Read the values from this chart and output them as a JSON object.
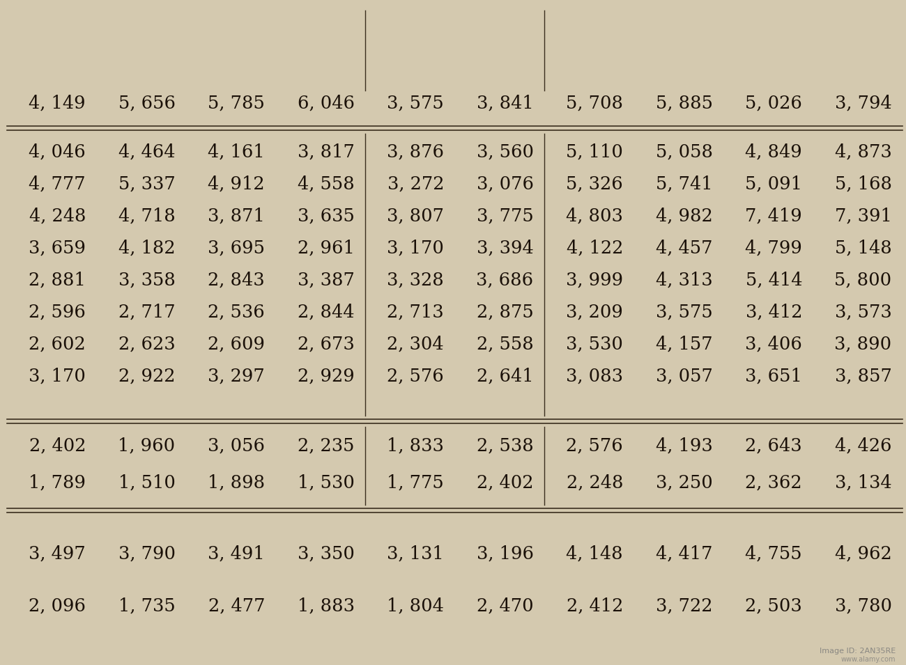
{
  "background_color": "#d4c9af",
  "text_color": "#1a1008",
  "font_size": 18.5,
  "row0": [
    "4, 149",
    "5, 656",
    "5, 785",
    "6, 046",
    "3, 575",
    "3, 841",
    "5, 708",
    "5, 885",
    "5, 026",
    "3, 794"
  ],
  "section1": [
    [
      "4, 046",
      "4, 464",
      "4, 161",
      "3, 817",
      "3, 876",
      "3, 560",
      "5, 110",
      "5, 058",
      "4, 849",
      "4, 873"
    ],
    [
      "4, 777",
      "5, 337",
      "4, 912",
      "4, 558",
      "3, 272",
      "3, 076",
      "5, 326",
      "5, 741",
      "5, 091",
      "5, 168"
    ],
    [
      "4, 248",
      "4, 718",
      "3, 871",
      "3, 635",
      "3, 807",
      "3, 775",
      "4, 803",
      "4, 982",
      "7, 419",
      "7, 391"
    ],
    [
      "3, 659",
      "4, 182",
      "3, 695",
      "2, 961",
      "3, 170",
      "3, 394",
      "4, 122",
      "4, 457",
      "4, 799",
      "5, 148"
    ],
    [
      "2, 881",
      "3, 358",
      "2, 843",
      "3, 387",
      "3, 328",
      "3, 686",
      "3, 999",
      "4, 313",
      "5, 414",
      "5, 800"
    ],
    [
      "2, 596",
      "2, 717",
      "2, 536",
      "2, 844",
      "2, 713",
      "2, 875",
      "3, 209",
      "3, 575",
      "3, 412",
      "3, 573"
    ],
    [
      "2, 602",
      "2, 623",
      "2, 609",
      "2, 673",
      "2, 304",
      "2, 558",
      "3, 530",
      "4, 157",
      "3, 406",
      "3, 890"
    ],
    [
      "3, 170",
      "2, 922",
      "3, 297",
      "2, 929",
      "2, 576",
      "2, 641",
      "3, 083",
      "3, 057",
      "3, 651",
      "3, 857"
    ]
  ],
  "section2": [
    [
      "2, 402",
      "1, 960",
      "3, 056",
      "2, 235",
      "1, 833",
      "2, 538",
      "2, 576",
      "4, 193",
      "2, 643",
      "4, 426"
    ],
    [
      "1, 789",
      "1, 510",
      "1, 898",
      "1, 530",
      "1, 775",
      "2, 402",
      "2, 248",
      "3, 250",
      "2, 362",
      "3, 134"
    ]
  ],
  "section3": [
    "3, 497",
    "3, 790",
    "3, 491",
    "3, 350",
    "3, 131",
    "3, 196",
    "4, 148",
    "4, 417",
    "4, 755",
    "4, 962"
  ],
  "section4": [
    "2, 096",
    "1, 735",
    "2, 477",
    "1, 883",
    "1, 804",
    "2, 470",
    "2, 412",
    "3, 722",
    "2, 503",
    "3, 780"
  ],
  "ncols": 10,
  "watermark": "2AN35RE",
  "line_color": "#3a2e1e"
}
